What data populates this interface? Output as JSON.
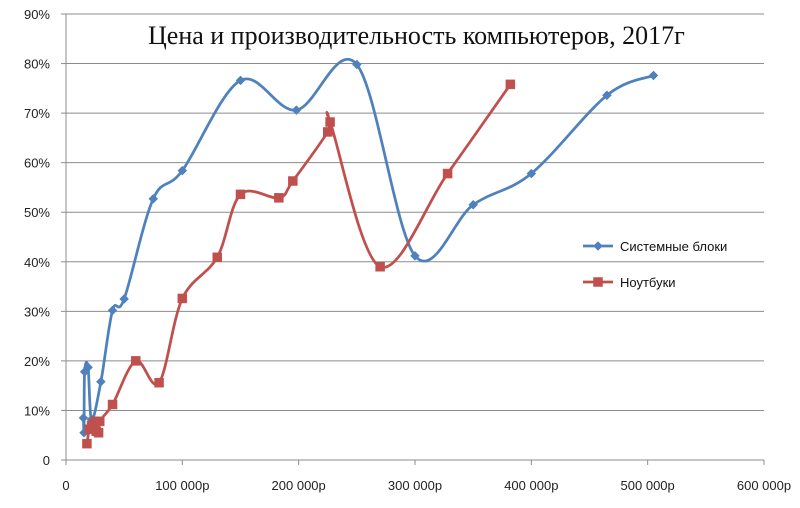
{
  "chart_data": {
    "type": "scatter",
    "title": "Цена и производительность компьютеров, 2017г",
    "xlabel": "",
    "ylabel": "",
    "xlim": [
      0,
      600000
    ],
    "ylim": [
      0,
      90
    ],
    "x_ticks": [
      0,
      100000,
      200000,
      300000,
      400000,
      500000,
      600000
    ],
    "x_tick_labels": [
      "0",
      "100 000р",
      "200 000р",
      "300 000р",
      "400 000р",
      "500 000р",
      "600 000р"
    ],
    "y_ticks": [
      0,
      10,
      20,
      30,
      40,
      50,
      60,
      70,
      80,
      90
    ],
    "y_tick_labels": [
      "0",
      "10%",
      "20%",
      "30%",
      "40%",
      "50%",
      "60%",
      "70%",
      "80%",
      "90%"
    ],
    "grid": "horizontal",
    "legend_position": "right",
    "smooth_lines": true,
    "series": [
      {
        "name": "Системные блоки",
        "color": "#4F81BD",
        "marker": "diamond",
        "points": [
          [
            15000,
            8.5
          ],
          [
            15500,
            5.5
          ],
          [
            16000,
            17.8
          ],
          [
            19000,
            18.7
          ],
          [
            22000,
            8.2
          ],
          [
            30000,
            15.8
          ],
          [
            40000,
            30.2
          ],
          [
            50000,
            32.5
          ],
          [
            75000,
            52.7
          ],
          [
            100000,
            58.4
          ],
          [
            150000,
            76.6
          ],
          [
            198000,
            70.6
          ],
          [
            250000,
            79.8
          ],
          [
            300000,
            41.2
          ],
          [
            350000,
            51.5
          ],
          [
            400000,
            57.8
          ],
          [
            465000,
            73.6
          ],
          [
            505000,
            77.6
          ]
        ]
      },
      {
        "name": "Ноутбуки",
        "color": "#C0504D",
        "marker": "square",
        "points": [
          [
            18000,
            3.3
          ],
          [
            20000,
            6.2
          ],
          [
            22000,
            7.0
          ],
          [
            25000,
            7.8
          ],
          [
            26000,
            5.8
          ],
          [
            28000,
            5.5
          ],
          [
            29000,
            7.8
          ],
          [
            40000,
            11.2
          ],
          [
            60000,
            20.0
          ],
          [
            80000,
            15.6
          ],
          [
            100000,
            32.6
          ],
          [
            130000,
            40.9
          ],
          [
            150000,
            53.6
          ],
          [
            183000,
            52.9
          ],
          [
            195000,
            56.3
          ],
          [
            225000,
            66.2
          ],
          [
            227000,
            68.2
          ],
          [
            270000,
            39.0
          ],
          [
            328000,
            57.8
          ],
          [
            382000,
            75.8
          ]
        ]
      }
    ]
  }
}
